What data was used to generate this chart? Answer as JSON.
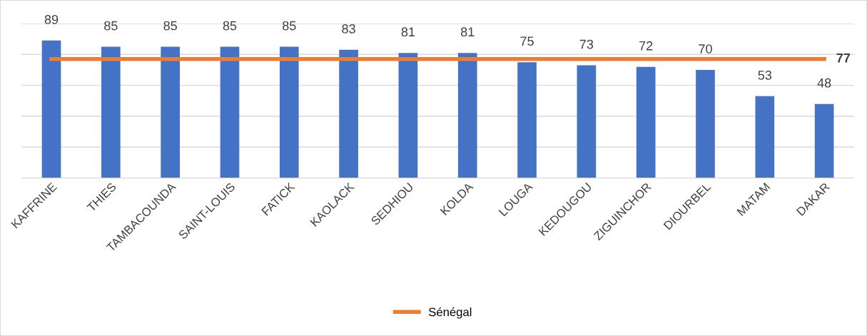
{
  "chart_data": {
    "type": "bar",
    "categories": [
      "KAFFRINE",
      "THIES",
      "TAMBACOUNDA",
      "SAINT-LOUIS",
      "FATICK",
      "KAOLACK",
      "SEDHIOU",
      "KOLDA",
      "LOUGA",
      "KEDOUGOU",
      "ZIGUINCHOR",
      "DIOURBEL",
      "MATAM",
      "DAKAR"
    ],
    "series": [
      {
        "color": "#4472c4",
        "values": [
          89,
          85,
          85,
          85,
          85,
          83,
          81,
          81,
          75,
          73,
          72,
          70,
          53,
          48
        ],
        "value_labels": [
          "89",
          "85",
          "85",
          "85",
          "85",
          "83",
          "81",
          "81",
          "75",
          "73",
          "72",
          "70",
          "53",
          "48"
        ]
      },
      {
        "type": "line",
        "name": "Sénégal",
        "color": "#ed7d31",
        "values": [
          77,
          77,
          77,
          77,
          77,
          77,
          77,
          77,
          77,
          77,
          77,
          77,
          77,
          77
        ],
        "value_labels": [
          null,
          null,
          null,
          null,
          null,
          null,
          null,
          null,
          null,
          null,
          null,
          null,
          null,
          "77"
        ]
      }
    ],
    "ylim": [
      0,
      100
    ],
    "yticks": [
      {
        "value": 0,
        "label": null
      },
      {
        "value": 20,
        "label": null
      },
      {
        "value": 40,
        "label": null
      },
      {
        "value": 60,
        "label": null
      },
      {
        "value": 80,
        "label": null
      },
      {
        "value": 100,
        "label": null
      }
    ],
    "tick_labels": "x",
    "grid": "y",
    "legend": "bottom",
    "marker": "none",
    "line_style": "solid"
  }
}
